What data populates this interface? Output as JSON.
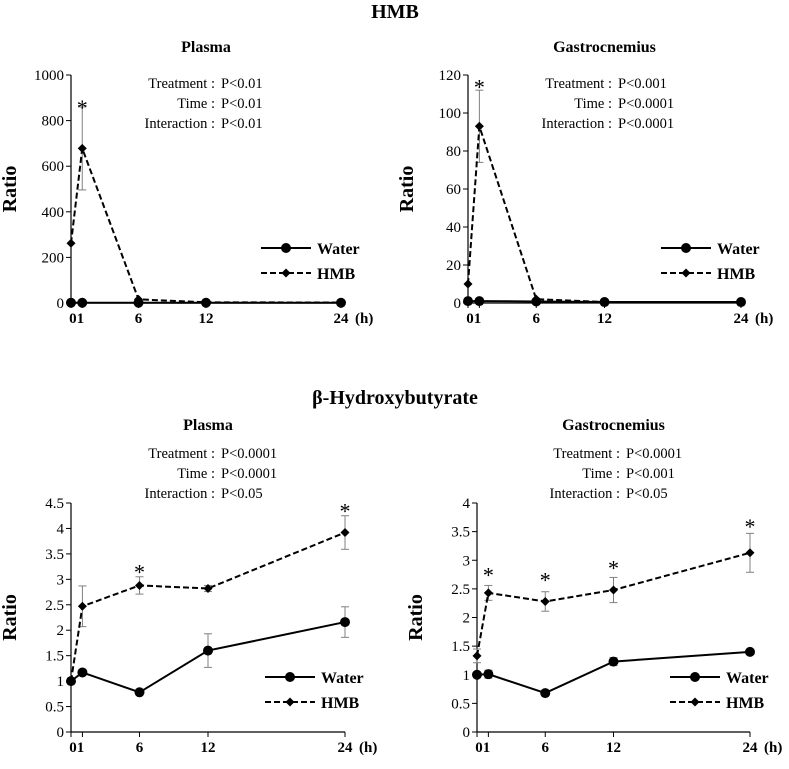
{
  "figure": {
    "sections": [
      {
        "title": "HMB",
        "panels": [
          0,
          1
        ]
      },
      {
        "title": "β-Hydroxybutyrate",
        "panels": [
          2,
          3
        ]
      }
    ]
  },
  "colors": {
    "line": "#000000",
    "error_bar": "#808080",
    "background": "#ffffff"
  },
  "chart_data": [
    {
      "type": "line",
      "title": "Plasma",
      "section": "HMB",
      "ylabel": "Ratio",
      "xlabel": "(h)",
      "x_ticks": [
        0,
        1,
        6,
        12,
        24
      ],
      "x_tick_labels": [
        "0",
        "1",
        "6",
        "12",
        "24"
      ],
      "x_tick_label_combined": "01",
      "xlim": [
        0,
        24
      ],
      "ylim": [
        0,
        1000
      ],
      "y_ticks": [
        0,
        200,
        400,
        600,
        800,
        1000
      ],
      "y_tick_labels": [
        "0",
        "200",
        "400",
        "600",
        "800",
        "1000"
      ],
      "stats": [
        {
          "label": "Treatment :",
          "value": "P<0.01"
        },
        {
          "label": "Time :",
          "value": "P<0.01"
        },
        {
          "label": "Interaction :",
          "value": "P<0.01"
        }
      ],
      "series": [
        {
          "name": "Water",
          "style": "solid",
          "marker": "circle",
          "x": [
            0,
            1,
            6,
            12,
            24
          ],
          "values": [
            1,
            1,
            1,
            1,
            1
          ],
          "errors": [
            0,
            0,
            0,
            0,
            0
          ]
        },
        {
          "name": "HMB",
          "style": "dashed",
          "marker": "diamond",
          "x": [
            0,
            1,
            6,
            12,
            24
          ],
          "values": [
            262,
            678,
            16,
            3,
            2
          ],
          "errors": [
            0,
            182,
            0,
            0,
            0
          ]
        }
      ],
      "significance": [
        {
          "x": 1,
          "y": 860,
          "label": "*"
        }
      ],
      "legend_position": "lower-right"
    },
    {
      "type": "line",
      "title": "Gastrocnemius",
      "section": "HMB",
      "ylabel": "Ratio",
      "xlabel": "(h)",
      "x_ticks": [
        0,
        1,
        6,
        12,
        24
      ],
      "x_tick_labels": [
        "0",
        "1",
        "6",
        "12",
        "24"
      ],
      "x_tick_label_combined": "01",
      "xlim": [
        0,
        24
      ],
      "ylim": [
        0,
        120
      ],
      "y_ticks": [
        0,
        20,
        40,
        60,
        80,
        100,
        120
      ],
      "y_tick_labels": [
        "0",
        "20",
        "40",
        "60",
        "80",
        "100",
        "120"
      ],
      "stats": [
        {
          "label": "Treatment :",
          "value": "P<0.001"
        },
        {
          "label": "Time :",
          "value": "P<0.0001"
        },
        {
          "label": "Interaction :",
          "value": "P<0.0001"
        }
      ],
      "series": [
        {
          "name": "Water",
          "style": "solid",
          "marker": "circle",
          "x": [
            0,
            1,
            6,
            12,
            24
          ],
          "values": [
            1,
            1,
            0.8,
            0.5,
            0.5
          ],
          "errors": [
            0,
            0,
            0,
            0,
            0
          ]
        },
        {
          "name": "HMB",
          "style": "dashed",
          "marker": "diamond",
          "x": [
            0,
            1,
            6,
            12,
            24
          ],
          "values": [
            10,
            93,
            2,
            0.5,
            0.5
          ],
          "errors": [
            0,
            19,
            0,
            0,
            0
          ]
        }
      ],
      "significance": [
        {
          "x": 1,
          "y": 114,
          "label": "*"
        }
      ],
      "legend_position": "lower-right"
    },
    {
      "type": "line",
      "title": "Plasma",
      "section": "β-Hydroxybutyrate",
      "ylabel": "Ratio",
      "xlabel": "(h)",
      "x_ticks": [
        0,
        1,
        6,
        12,
        24
      ],
      "x_tick_labels": [
        "0",
        "1",
        "6",
        "12",
        "24"
      ],
      "x_tick_label_combined": "01",
      "xlim": [
        0,
        24
      ],
      "ylim": [
        0,
        4.5
      ],
      "y_ticks": [
        0,
        0.5,
        1,
        1.5,
        2,
        2.5,
        3,
        3.5,
        4,
        4.5
      ],
      "y_tick_labels": [
        "0",
        "0.5",
        "1",
        "1.5",
        "2",
        "2.5",
        "3",
        "3.5",
        "4",
        "4.5"
      ],
      "stats": [
        {
          "label": "Treatment :",
          "value": "P<0.0001"
        },
        {
          "label": "Time :",
          "value": "P<0.0001"
        },
        {
          "label": "Interaction :",
          "value": "P<0.05"
        }
      ],
      "series": [
        {
          "name": "Water",
          "style": "solid",
          "marker": "circle",
          "x": [
            0,
            1,
            6,
            12,
            24
          ],
          "values": [
            1,
            1.17,
            0.78,
            1.6,
            2.16
          ],
          "errors": [
            0,
            0,
            0,
            0.33,
            0.3
          ]
        },
        {
          "name": "HMB",
          "style": "dashed",
          "marker": "diamond",
          "x": [
            0,
            1,
            6,
            12,
            24
          ],
          "values": [
            1,
            2.47,
            2.88,
            2.82,
            3.92
          ],
          "errors": [
            0,
            0.4,
            0.17,
            0.06,
            0.33
          ]
        }
      ],
      "significance": [
        {
          "x": 6,
          "y": 3.15,
          "label": "*"
        },
        {
          "x": 24,
          "y": 4.35,
          "label": "*"
        }
      ],
      "legend_position": "lower-right"
    },
    {
      "type": "line",
      "title": "Gastrocnemius",
      "section": "β-Hydroxybutyrate",
      "ylabel": "Ratio",
      "xlabel": "(h)",
      "x_ticks": [
        0,
        1,
        6,
        12,
        24
      ],
      "x_tick_labels": [
        "0",
        "1",
        "6",
        "12",
        "24"
      ],
      "x_tick_label_combined": "01",
      "xlim": [
        0,
        24
      ],
      "ylim": [
        0,
        4
      ],
      "y_ticks": [
        0,
        0.5,
        1,
        1.5,
        2,
        2.5,
        3,
        3.5,
        4
      ],
      "y_tick_labels": [
        "0",
        "0.5",
        "1",
        "1.5",
        "2",
        "2.5",
        "3",
        "3.5",
        "4"
      ],
      "stats": [
        {
          "label": "Treatment :",
          "value": "P<0.0001"
        },
        {
          "label": "Time :",
          "value": "P<0.001"
        },
        {
          "label": "Interaction :",
          "value": "P<0.05"
        }
      ],
      "series": [
        {
          "name": "Water",
          "style": "solid",
          "marker": "circle",
          "x": [
            0,
            1,
            6,
            12,
            24
          ],
          "values": [
            1,
            1.01,
            0.68,
            1.23,
            1.4
          ],
          "errors": [
            0,
            0.07,
            0.03,
            0.07,
            0.04
          ]
        },
        {
          "name": "HMB",
          "style": "dashed",
          "marker": "diamond",
          "x": [
            0,
            1,
            6,
            12,
            24
          ],
          "values": [
            1.33,
            2.43,
            2.28,
            2.48,
            3.13
          ],
          "errors": [
            0.12,
            0.13,
            0.17,
            0.22,
            0.34
          ]
        }
      ],
      "significance": [
        {
          "x": 1,
          "y": 2.75,
          "label": "*"
        },
        {
          "x": 6,
          "y": 2.66,
          "label": "*"
        },
        {
          "x": 12,
          "y": 2.87,
          "label": "*"
        },
        {
          "x": 24,
          "y": 3.6,
          "label": "*"
        }
      ],
      "legend_position": "lower-right"
    }
  ]
}
